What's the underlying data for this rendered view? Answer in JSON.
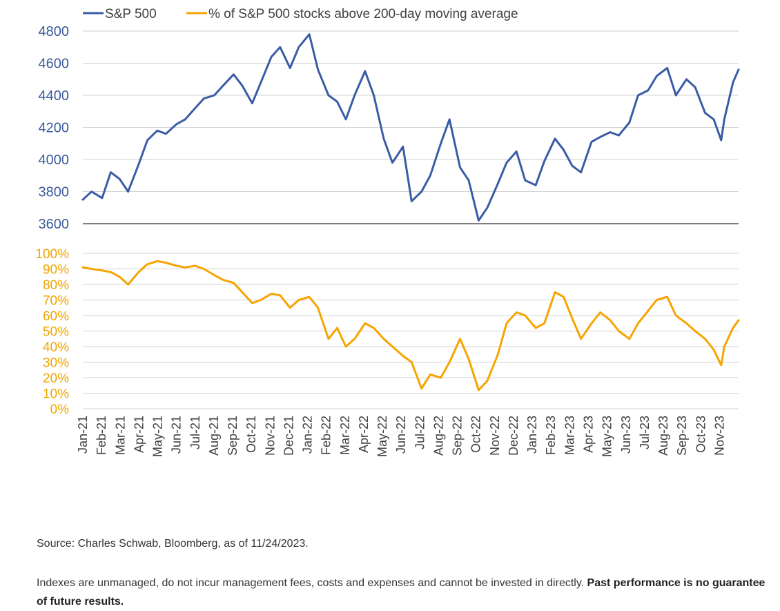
{
  "colors": {
    "sp500": "#3a5ca5",
    "pct": "#f7a400",
    "grid": "#d0d0d0",
    "axis": "#7f7f7f"
  },
  "legend": [
    {
      "label": "S&P 500",
      "color": "#3a5ca5"
    },
    {
      "label": "% of S&P 500 stocks above 200-day moving average",
      "color": "#f7a400"
    }
  ],
  "footer": {
    "source": "Source: Charles Schwab, Bloomberg, as of 11/24/2023.",
    "disclaimer": "Indexes are unmanaged, do not incur management fees, costs and expenses and cannot be invested in directly.",
    "disclaimer_bold": "Past performance is no guarantee of future results."
  },
  "chart_data": [
    {
      "type": "line",
      "series": [
        {
          "name": "S&P 500",
          "x": [
            "2021-01-01",
            "2021-01-15",
            "2021-02-01",
            "2021-02-15",
            "2021-03-01",
            "2021-03-15",
            "2021-04-01",
            "2021-04-15",
            "2021-05-01",
            "2021-05-15",
            "2021-06-01",
            "2021-06-15",
            "2021-07-01",
            "2021-07-15",
            "2021-08-01",
            "2021-08-15",
            "2021-09-01",
            "2021-09-15",
            "2021-10-01",
            "2021-10-15",
            "2021-11-01",
            "2021-11-15",
            "2021-12-01",
            "2021-12-15",
            "2022-01-01",
            "2022-01-15",
            "2022-02-01",
            "2022-02-15",
            "2022-03-01",
            "2022-03-15",
            "2022-04-01",
            "2022-04-15",
            "2022-05-01",
            "2022-05-15",
            "2022-06-01",
            "2022-06-15",
            "2022-07-01",
            "2022-07-15",
            "2022-08-01",
            "2022-08-15",
            "2022-09-01",
            "2022-09-15",
            "2022-10-01",
            "2022-10-15",
            "2022-11-01",
            "2022-11-15",
            "2022-12-01",
            "2022-12-15",
            "2023-01-01",
            "2023-01-15",
            "2023-02-01",
            "2023-02-15",
            "2023-03-01",
            "2023-03-15",
            "2023-04-01",
            "2023-04-15",
            "2023-05-01",
            "2023-05-15",
            "2023-06-01",
            "2023-06-15",
            "2023-07-01",
            "2023-07-15",
            "2023-08-01",
            "2023-08-15",
            "2023-09-01",
            "2023-09-15",
            "2023-10-01",
            "2023-10-15",
            "2023-10-27",
            "2023-11-01",
            "2023-11-15",
            "2023-11-24"
          ],
          "values": [
            3750,
            3800,
            3760,
            3920,
            3880,
            3800,
            3970,
            4120,
            4180,
            4160,
            4220,
            4250,
            4320,
            4380,
            4400,
            4460,
            4530,
            4460,
            4350,
            4480,
            4640,
            4700,
            4570,
            4700,
            4780,
            4560,
            4400,
            4360,
            4250,
            4400,
            4550,
            4400,
            4130,
            3980,
            4080,
            3740,
            3800,
            3900,
            4100,
            4250,
            3950,
            3870,
            3620,
            3700,
            3850,
            3980,
            4050,
            3870,
            3840,
            3990,
            4130,
            4060,
            3960,
            3920,
            4110,
            4140,
            4170,
            4150,
            4230,
            4400,
            4430,
            4520,
            4570,
            4400,
            4500,
            4450,
            4290,
            4250,
            4120,
            4250,
            4480,
            4560
          ]
        },
        {
          "name": "% of S&P 500 stocks above 200-day moving average",
          "x": [
            "2021-01-01",
            "2021-01-15",
            "2021-02-01",
            "2021-02-15",
            "2021-03-01",
            "2021-03-15",
            "2021-04-01",
            "2021-04-15",
            "2021-05-01",
            "2021-05-15",
            "2021-06-01",
            "2021-06-15",
            "2021-07-01",
            "2021-07-15",
            "2021-08-01",
            "2021-08-15",
            "2021-09-01",
            "2021-09-15",
            "2021-10-01",
            "2021-10-15",
            "2021-11-01",
            "2021-11-15",
            "2021-12-01",
            "2021-12-15",
            "2022-01-01",
            "2022-01-15",
            "2022-02-01",
            "2022-02-15",
            "2022-03-01",
            "2022-03-15",
            "2022-04-01",
            "2022-04-15",
            "2022-05-01",
            "2022-05-15",
            "2022-06-01",
            "2022-06-15",
            "2022-07-01",
            "2022-07-15",
            "2022-08-01",
            "2022-08-15",
            "2022-09-01",
            "2022-09-15",
            "2022-10-01",
            "2022-10-15",
            "2022-11-01",
            "2022-11-15",
            "2022-12-01",
            "2022-12-15",
            "2023-01-01",
            "2023-01-15",
            "2023-02-01",
            "2023-02-15",
            "2023-03-01",
            "2023-03-15",
            "2023-04-01",
            "2023-04-15",
            "2023-05-01",
            "2023-05-15",
            "2023-06-01",
            "2023-06-15",
            "2023-07-01",
            "2023-07-15",
            "2023-08-01",
            "2023-08-15",
            "2023-09-01",
            "2023-09-15",
            "2023-10-01",
            "2023-10-15",
            "2023-10-27",
            "2023-11-01",
            "2023-11-15",
            "2023-11-24"
          ],
          "values": [
            91,
            90,
            89,
            88,
            85,
            80,
            88,
            93,
            95,
            94,
            92,
            91,
            92,
            90,
            86,
            83,
            81,
            75,
            68,
            70,
            74,
            73,
            65,
            70,
            72,
            65,
            45,
            52,
            40,
            45,
            55,
            52,
            45,
            40,
            34,
            30,
            13,
            22,
            20,
            30,
            45,
            32,
            12,
            18,
            35,
            55,
            62,
            60,
            52,
            55,
            75,
            72,
            58,
            45,
            55,
            62,
            57,
            50,
            45,
            55,
            63,
            70,
            72,
            60,
            55,
            50,
            45,
            38,
            28,
            40,
            52,
            57
          ]
        }
      ],
      "panels": [
        {
          "series": "S&P 500",
          "ylim": [
            3600,
            4800
          ],
          "yticks": [
            "4800",
            "4600",
            "4400",
            "4200",
            "4000",
            "3800",
            "3600"
          ]
        },
        {
          "series": "% of S&P 500 stocks above 200-day moving average",
          "ylim": [
            0,
            100
          ],
          "yticks": [
            "100%",
            "90%",
            "80%",
            "70%",
            "60%",
            "50%",
            "40%",
            "30%",
            "20%",
            "10%",
            "0%"
          ]
        }
      ],
      "xticks": [
        "Jan-21",
        "Feb-21",
        "Mar-21",
        "Apr-21",
        "May-21",
        "Jun-21",
        "Jul-21",
        "Aug-21",
        "Sep-21",
        "Oct-21",
        "Nov-21",
        "Dec-21",
        "Jan-22",
        "Feb-22",
        "Mar-22",
        "Apr-22",
        "May-22",
        "Jun-22",
        "Jul-22",
        "Aug-22",
        "Sep-22",
        "Oct-22",
        "Nov-22",
        "Dec-22",
        "Jan-23",
        "Feb-23",
        "Mar-23",
        "Apr-23",
        "May-23",
        "Jun-23",
        "Jul-23",
        "Aug-23",
        "Sep-23",
        "Oct-23",
        "Nov-23"
      ],
      "grid": true,
      "legend_position": "top"
    }
  ]
}
